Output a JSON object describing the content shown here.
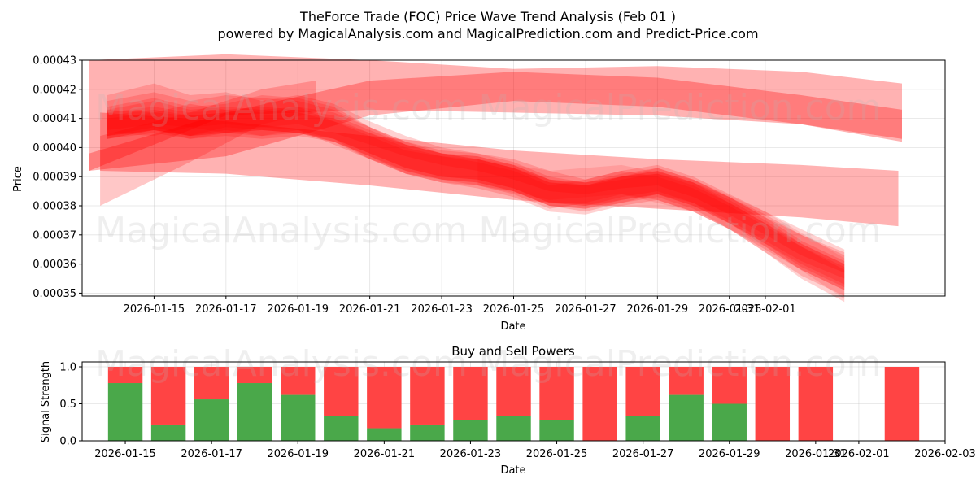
{
  "colors": {
    "band": "#ff0000",
    "buy": "#4aa84a",
    "sell": "#ff4444"
  },
  "title_line1": "TheForce Trade (FOC) Price Wave Trend Analysis (Feb 01 )",
  "title_line2": "powered by MagicalAnalysis.com and MagicalPrediction.com and Predict-Price.com",
  "watermarks": {
    "left": "MagicalAnalysis.com",
    "right": "MagicalPrediction.com"
  },
  "chart_data": [
    {
      "type": "area",
      "title": "TheForce Trade (FOC) Price Wave Trend Analysis (Feb 01 )",
      "xlabel": "Date",
      "ylabel": "Price",
      "ylim": [
        0.000349,
        0.00043
      ],
      "xlim_days": [
        -2.0,
        22.0
      ],
      "x_ticks": [
        {
          "day": 0,
          "label": "2026-01-15"
        },
        {
          "day": 2,
          "label": "2026-01-17"
        },
        {
          "day": 4,
          "label": "2026-01-19"
        },
        {
          "day": 6,
          "label": "2026-01-21"
        },
        {
          "day": 8,
          "label": "2026-01-23"
        },
        {
          "day": 10,
          "label": "2026-01-25"
        },
        {
          "day": 12,
          "label": "2026-01-27"
        },
        {
          "day": 14,
          "label": "2026-01-29"
        },
        {
          "day": 16,
          "label": "2026-01-31"
        },
        {
          "day": 17,
          "label": "2026-02-01"
        }
      ],
      "y_ticks": [
        {
          "value": 0.00035,
          "label": "0.00035"
        },
        {
          "value": 0.00036,
          "label": "0.00036"
        },
        {
          "value": 0.00037,
          "label": "0.00037"
        },
        {
          "value": 0.00038,
          "label": "0.00038"
        },
        {
          "value": 0.00039,
          "label": "0.00039"
        },
        {
          "value": 0.0004,
          "label": "0.00040"
        },
        {
          "value": 0.00041,
          "label": "0.00041"
        },
        {
          "value": 0.00042,
          "label": "0.00042"
        },
        {
          "value": 0.00043,
          "label": "0.00043"
        }
      ],
      "series": [
        {
          "name": "wide-wave-top",
          "opacity": 0.3,
          "x": [
            -1.8,
            2,
            6,
            10,
            14,
            18,
            20.8
          ],
          "upper": [
            0.00043,
            0.000432,
            0.00043,
            0.000427,
            0.000428,
            0.000426,
            0.000422
          ],
          "lower": [
            0.000392,
            0.000411,
            0.000413,
            0.000412,
            0.000411,
            0.000408,
            0.000402
          ]
        },
        {
          "name": "long-upper-wave",
          "opacity": 0.3,
          "x": [
            -1.8,
            2,
            6,
            10,
            14,
            18,
            20.8
          ],
          "upper": [
            0.000398,
            0.000412,
            0.000423,
            0.000426,
            0.000424,
            0.000418,
            0.000413
          ],
          "lower": [
            0.000392,
            0.000397,
            0.000411,
            0.000416,
            0.000414,
            0.000408,
            0.000403
          ]
        },
        {
          "name": "early-rise",
          "opacity": 0.22,
          "x": [
            -1.5,
            1,
            3,
            4.5
          ],
          "upper": [
            0.000404,
            0.000412,
            0.00042,
            0.000423
          ],
          "lower": [
            0.00038,
            0.000395,
            0.000408,
            0.000412
          ]
        },
        {
          "name": "long-lower-wave",
          "opacity": 0.3,
          "x": [
            -1.5,
            2,
            6,
            10,
            14,
            18,
            20.7
          ],
          "upper": [
            0.000412,
            0.000409,
            0.000404,
            0.000399,
            0.000396,
            0.000394,
            0.000392
          ],
          "lower": [
            0.000392,
            0.000391,
            0.000387,
            0.000382,
            0.000379,
            0.000376,
            0.000373
          ]
        },
        {
          "name": "wave-a",
          "opacity": 0.18,
          "x": [
            -1.3,
            0,
            1,
            2,
            3,
            4,
            5,
            6,
            7,
            8,
            9,
            10,
            11,
            12,
            13,
            14,
            15,
            16,
            17,
            18,
            19.2
          ],
          "upper": [
            0.000418,
            0.000422,
            0.000418,
            0.000419,
            0.000416,
            0.000418,
            0.000415,
            0.000409,
            0.000404,
            0.0004,
            0.000398,
            0.000396,
            0.000392,
            0.000389,
            0.000392,
            0.000394,
            0.00039,
            0.000384,
            0.000378,
            0.000372,
            0.000365
          ],
          "lower": [
            0.000403,
            0.000406,
            0.000404,
            0.000406,
            0.000404,
            0.000405,
            0.000402,
            0.000396,
            0.000391,
            0.000388,
            0.000387,
            0.000385,
            0.00038,
            0.000378,
            0.000381,
            0.000383,
            0.000379,
            0.000372,
            0.000364,
            0.000355,
            0.000347
          ]
        },
        {
          "name": "wave-b",
          "opacity": 0.18,
          "x": [
            -1.3,
            0,
            1,
            2,
            3,
            4,
            5,
            6,
            7,
            8,
            9,
            10,
            11,
            12,
            13,
            14,
            15,
            16,
            17,
            18,
            19.2
          ],
          "upper": [
            0.000414,
            0.000417,
            0.000414,
            0.000415,
            0.000418,
            0.000417,
            0.000414,
            0.000407,
            0.000402,
            0.000399,
            0.000398,
            0.000395,
            0.00039,
            0.000388,
            0.00039,
            0.000393,
            0.000389,
            0.000383,
            0.000376,
            0.00037,
            0.000363
          ],
          "lower": [
            0.000403,
            0.000405,
            0.000403,
            0.000405,
            0.000407,
            0.000406,
            0.000403,
            0.000396,
            0.000392,
            0.000389,
            0.000388,
            0.000385,
            0.00038,
            0.000379,
            0.000381,
            0.000384,
            0.00038,
            0.000374,
            0.000366,
            0.000358,
            0.000351
          ]
        },
        {
          "name": "wave-c",
          "opacity": 0.18,
          "x": [
            -1.3,
            0,
            1,
            2,
            3,
            4,
            5,
            6,
            7,
            8,
            9,
            10,
            11,
            12,
            13,
            14,
            15,
            16,
            17,
            18,
            19.2
          ],
          "upper": [
            0.000416,
            0.000419,
            0.000416,
            0.000418,
            0.000417,
            0.000416,
            0.000413,
            0.000407,
            0.000401,
            0.000398,
            0.000396,
            0.000393,
            0.000388,
            0.000387,
            0.00039,
            0.000392,
            0.000388,
            0.000383,
            0.000377,
            0.00037,
            0.000364
          ],
          "lower": [
            0.000404,
            0.000407,
            0.000404,
            0.000407,
            0.000406,
            0.000405,
            0.000402,
            0.000397,
            0.000391,
            0.000388,
            0.000386,
            0.000383,
            0.000378,
            0.000377,
            0.00038,
            0.000382,
            0.000378,
            0.000372,
            0.000364,
            0.000356,
            0.000349
          ]
        },
        {
          "name": "wave-d",
          "opacity": 0.18,
          "x": [
            -1.3,
            0,
            1,
            2,
            3,
            4,
            5,
            6,
            7,
            8,
            9,
            10,
            11,
            12,
            13,
            14,
            15,
            16,
            17,
            18,
            19.2
          ],
          "upper": [
            0.000413,
            0.000416,
            0.000413,
            0.000414,
            0.000413,
            0.000414,
            0.000412,
            0.000407,
            0.000402,
            0.000398,
            0.000397,
            0.000394,
            0.000389,
            0.000388,
            0.000391,
            0.000393,
            0.000389,
            0.000383,
            0.000376,
            0.000368,
            0.000361
          ],
          "lower": [
            0.000403,
            0.000406,
            0.000403,
            0.000404,
            0.000403,
            0.000404,
            0.000402,
            0.000397,
            0.000392,
            0.000389,
            0.000388,
            0.000385,
            0.00038,
            0.000379,
            0.000382,
            0.000384,
            0.00038,
            0.000374,
            0.000367,
            0.000359,
            0.000352
          ]
        },
        {
          "name": "wave-e",
          "opacity": 0.18,
          "x": [
            -1.3,
            0,
            1,
            2,
            3,
            4,
            5,
            6,
            7,
            8,
            9,
            10,
            11,
            12,
            13,
            14,
            15,
            16,
            17,
            18,
            19.2
          ],
          "upper": [
            0.000412,
            0.000414,
            0.000412,
            0.000413,
            0.000414,
            0.000413,
            0.000411,
            0.000406,
            0.000401,
            0.000398,
            0.000397,
            0.000394,
            0.000389,
            0.000387,
            0.00039,
            0.000392,
            0.000388,
            0.000381,
            0.000374,
            0.000366,
            0.000358
          ],
          "lower": [
            0.000404,
            0.000406,
            0.000404,
            0.000405,
            0.000406,
            0.000405,
            0.000403,
            0.000398,
            0.000393,
            0.00039,
            0.000389,
            0.000386,
            0.000381,
            0.00038,
            0.000383,
            0.000385,
            0.000381,
            0.000374,
            0.000367,
            0.00036,
            0.000353
          ]
        },
        {
          "name": "wave-f",
          "opacity": 0.18,
          "x": [
            -1.3,
            0,
            1,
            2,
            3,
            4,
            5,
            6,
            7,
            8,
            9,
            10,
            11,
            12,
            13,
            14,
            15,
            16,
            17,
            18,
            19.2
          ],
          "upper": [
            0.000411,
            0.000413,
            0.000411,
            0.000412,
            0.000413,
            0.000412,
            0.00041,
            0.000405,
            0.0004,
            0.000397,
            0.000396,
            0.000393,
            0.000388,
            0.000387,
            0.000389,
            0.000391,
            0.000388,
            0.000382,
            0.000375,
            0.000367,
            0.00036
          ],
          "lower": [
            0.000404,
            0.000406,
            0.000404,
            0.000405,
            0.000406,
            0.000405,
            0.000403,
            0.000398,
            0.000393,
            0.00039,
            0.000389,
            0.000386,
            0.000381,
            0.00038,
            0.000382,
            0.000384,
            0.000381,
            0.000375,
            0.000368,
            0.000361,
            0.000355
          ]
        },
        {
          "name": "wave-g",
          "opacity": 0.18,
          "x": [
            -1.3,
            0,
            1,
            2,
            3,
            4,
            5,
            6,
            7,
            8,
            9,
            10,
            11,
            12,
            13,
            14,
            15,
            16,
            17,
            18,
            19.2
          ],
          "upper": [
            0.000413,
            0.000412,
            0.000415,
            0.000413,
            0.000412,
            0.000414,
            0.000409,
            0.000404,
            0.000399,
            0.000397,
            0.000395,
            0.000392,
            0.000387,
            0.000389,
            0.000392,
            0.00039,
            0.000386,
            0.00038,
            0.000373,
            0.000366,
            0.000359
          ],
          "lower": [
            0.000405,
            0.000404,
            0.000407,
            0.000405,
            0.000404,
            0.000406,
            0.000401,
            0.000396,
            0.000391,
            0.000389,
            0.000387,
            0.000384,
            0.000379,
            0.000381,
            0.000384,
            0.000382,
            0.000378,
            0.000372,
            0.000365,
            0.000358,
            0.000351
          ]
        },
        {
          "name": "wave-h",
          "opacity": 0.18,
          "x": [
            -1.3,
            0,
            1,
            2,
            3,
            4,
            5,
            6,
            7,
            8,
            9,
            10,
            11,
            12,
            13,
            14,
            15,
            16,
            17,
            18,
            19.2
          ],
          "upper": [
            0.00041,
            0.000412,
            0.000411,
            0.000412,
            0.000411,
            0.000412,
            0.000409,
            0.000405,
            0.000401,
            0.000398,
            0.000396,
            0.000393,
            0.000389,
            0.000388,
            0.00039,
            0.000391,
            0.000387,
            0.000381,
            0.000374,
            0.000367,
            0.00036
          ],
          "lower": [
            0.000406,
            0.000408,
            0.000407,
            0.000408,
            0.000407,
            0.000408,
            0.000405,
            0.000401,
            0.000397,
            0.000394,
            0.000392,
            0.000389,
            0.000385,
            0.000384,
            0.000386,
            0.000387,
            0.000383,
            0.000377,
            0.00037,
            0.000363,
            0.000357
          ]
        },
        {
          "name": "faint-lower-tail",
          "opacity": 0.12,
          "x": [
            9,
            11,
            13,
            15,
            17,
            19.2
          ],
          "upper": [
            0.000396,
            0.000392,
            0.000394,
            0.000389,
            0.000378,
            0.000362
          ],
          "lower": [
            0.000387,
            0.000382,
            0.000384,
            0.000378,
            0.000366,
            0.000348
          ]
        }
      ]
    },
    {
      "type": "bar",
      "title": "Buy and Sell Powers",
      "xlabel": "Date",
      "ylabel": "Signal Strength",
      "ylim": [
        0,
        1.0
      ],
      "xlim_days": [
        -1.0,
        19.0
      ],
      "y_ticks": [
        {
          "value": 0.0,
          "label": "0.0"
        },
        {
          "value": 0.5,
          "label": "0.5"
        },
        {
          "value": 1.0,
          "label": "1.0"
        }
      ],
      "x_ticks": [
        {
          "day": 0,
          "label": "2026-01-15"
        },
        {
          "day": 2,
          "label": "2026-01-17"
        },
        {
          "day": 4,
          "label": "2026-01-19"
        },
        {
          "day": 6,
          "label": "2026-01-21"
        },
        {
          "day": 8,
          "label": "2026-01-23"
        },
        {
          "day": 10,
          "label": "2026-01-25"
        },
        {
          "day": 12,
          "label": "2026-01-27"
        },
        {
          "day": 14,
          "label": "2026-01-29"
        },
        {
          "day": 16,
          "label": "2026-01-31"
        },
        {
          "day": 17,
          "label": "2026-02-01"
        },
        {
          "day": 19,
          "label": "2026-02-03"
        }
      ],
      "days": [
        0,
        1,
        2,
        3,
        4,
        5,
        6,
        7,
        8,
        9,
        10,
        11,
        12,
        13,
        14,
        15,
        16,
        18
      ],
      "buy": [
        0.78,
        0.22,
        0.56,
        0.78,
        0.62,
        0.33,
        0.17,
        0.22,
        0.28,
        0.33,
        0.28,
        0.0,
        0.33,
        0.62,
        0.5,
        0.0,
        0.0,
        0.0
      ],
      "sell": [
        0.22,
        0.78,
        0.44,
        0.22,
        0.38,
        0.67,
        0.83,
        0.78,
        0.72,
        0.67,
        0.72,
        1.0,
        0.67,
        0.38,
        0.5,
        1.0,
        1.0,
        1.0
      ]
    }
  ]
}
